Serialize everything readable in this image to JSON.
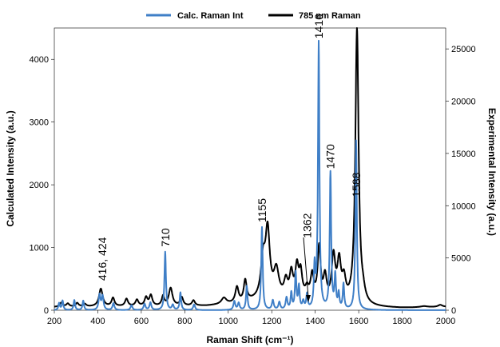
{
  "chart_data": {
    "type": "line",
    "xlabel": "Raman Shift  (cm⁻¹)",
    "ylabel_left": "Calculated Intensity (a.u.)",
    "ylabel_right": "Experimental Intensity (a.u.)",
    "xlim": [
      200,
      2000
    ],
    "ylim_left": [
      0,
      4500
    ],
    "ylim_right": [
      0,
      27000
    ],
    "x_ticks": [
      200,
      400,
      600,
      800,
      1000,
      1200,
      1400,
      1600,
      1800,
      2000
    ],
    "y_ticks_left": [
      0,
      1000,
      2000,
      3000,
      4000
    ],
    "y_ticks_right": [
      0,
      5000,
      10000,
      15000,
      20000,
      25000
    ],
    "grid": false,
    "legend_position": "top",
    "series": [
      {
        "name": "Calc. Raman Int",
        "axis": "left",
        "color": "#3f7fc7",
        "peaks": [
          [
            222,
            110,
            4
          ],
          [
            238,
            150,
            4
          ],
          [
            292,
            160,
            4
          ],
          [
            333,
            150,
            4
          ],
          [
            408,
            240,
            5
          ],
          [
            422,
            220,
            5
          ],
          [
            472,
            110,
            5
          ],
          [
            555,
            80,
            5
          ],
          [
            615,
            100,
            5
          ],
          [
            642,
            120,
            5
          ],
          [
            710,
            930,
            4
          ],
          [
            745,
            80,
            5
          ],
          [
            780,
            280,
            4
          ],
          [
            843,
            90,
            5
          ],
          [
            1028,
            140,
            5
          ],
          [
            1048,
            110,
            5
          ],
          [
            1085,
            380,
            4
          ],
          [
            1155,
            1320,
            4
          ],
          [
            1205,
            150,
            5
          ],
          [
            1235,
            120,
            5
          ],
          [
            1268,
            190,
            5
          ],
          [
            1290,
            260,
            4
          ],
          [
            1310,
            580,
            4
          ],
          [
            1325,
            360,
            4
          ],
          [
            1345,
            120,
            5
          ],
          [
            1362,
            230,
            4
          ],
          [
            1397,
            650,
            4
          ],
          [
            1416,
            4250,
            4
          ],
          [
            1470,
            2170,
            4
          ],
          [
            1492,
            520,
            4
          ],
          [
            1508,
            240,
            4
          ],
          [
            1530,
            400,
            4
          ],
          [
            1588,
            2700,
            4
          ]
        ]
      },
      {
        "name": "785 nm Raman",
        "axis": "right",
        "color": "#000000",
        "baseline": [
          [
            200,
            300
          ],
          [
            500,
            350
          ],
          [
            900,
            400
          ],
          [
            1050,
            600
          ],
          [
            1100,
            800
          ],
          [
            1300,
            1100
          ],
          [
            1380,
            1200
          ],
          [
            1430,
            600
          ],
          [
            1480,
            500
          ],
          [
            1550,
            400
          ],
          [
            1650,
            250
          ],
          [
            1800,
            200
          ],
          [
            2000,
            300
          ]
        ],
        "peaks": [
          [
            232,
            400,
            8
          ],
          [
            262,
            300,
            8
          ],
          [
            305,
            350,
            8
          ],
          [
            340,
            250,
            8
          ],
          [
            414,
            1700,
            10
          ],
          [
            470,
            800,
            8
          ],
          [
            532,
            700,
            8
          ],
          [
            580,
            600,
            8
          ],
          [
            622,
            800,
            8
          ],
          [
            644,
            1000,
            8
          ],
          [
            700,
            900,
            7
          ],
          [
            735,
            1700,
            10
          ],
          [
            786,
            800,
            8
          ],
          [
            840,
            500,
            8
          ],
          [
            980,
            600,
            14
          ],
          [
            1040,
            1500,
            9
          ],
          [
            1078,
            2000,
            8
          ],
          [
            1160,
            3500,
            12
          ],
          [
            1181,
            6300,
            12
          ],
          [
            1221,
            2600,
            14
          ],
          [
            1265,
            1500,
            10
          ],
          [
            1290,
            2200,
            9
          ],
          [
            1316,
            2800,
            9
          ],
          [
            1333,
            2200,
            8
          ],
          [
            1362,
            700,
            8
          ],
          [
            1386,
            2000,
            8
          ],
          [
            1418,
            5000,
            8
          ],
          [
            1445,
            2300,
            9
          ],
          [
            1484,
            4300,
            10
          ],
          [
            1510,
            3700,
            10
          ],
          [
            1532,
            2000,
            10
          ],
          [
            1592,
            26400,
            9
          ],
          [
            1620,
            700,
            10
          ],
          [
            1900,
            100,
            20
          ],
          [
            1975,
            200,
            12
          ]
        ]
      }
    ],
    "annotations": [
      {
        "text": "416, 424",
        "x": 420,
        "y": 420
      },
      {
        "text": "710",
        "x": 710,
        "y": 960
      },
      {
        "text": "1155",
        "x": 1155,
        "y": 1350
      },
      {
        "text": "1362",
        "x": 1362,
        "y": 1100
      },
      {
        "text": "1416",
        "x": 1416,
        "y": 4280
      },
      {
        "text": "1470",
        "x": 1470,
        "y": 2200
      },
      {
        "text": "1588",
        "x": 1588,
        "y": 1750
      }
    ]
  }
}
